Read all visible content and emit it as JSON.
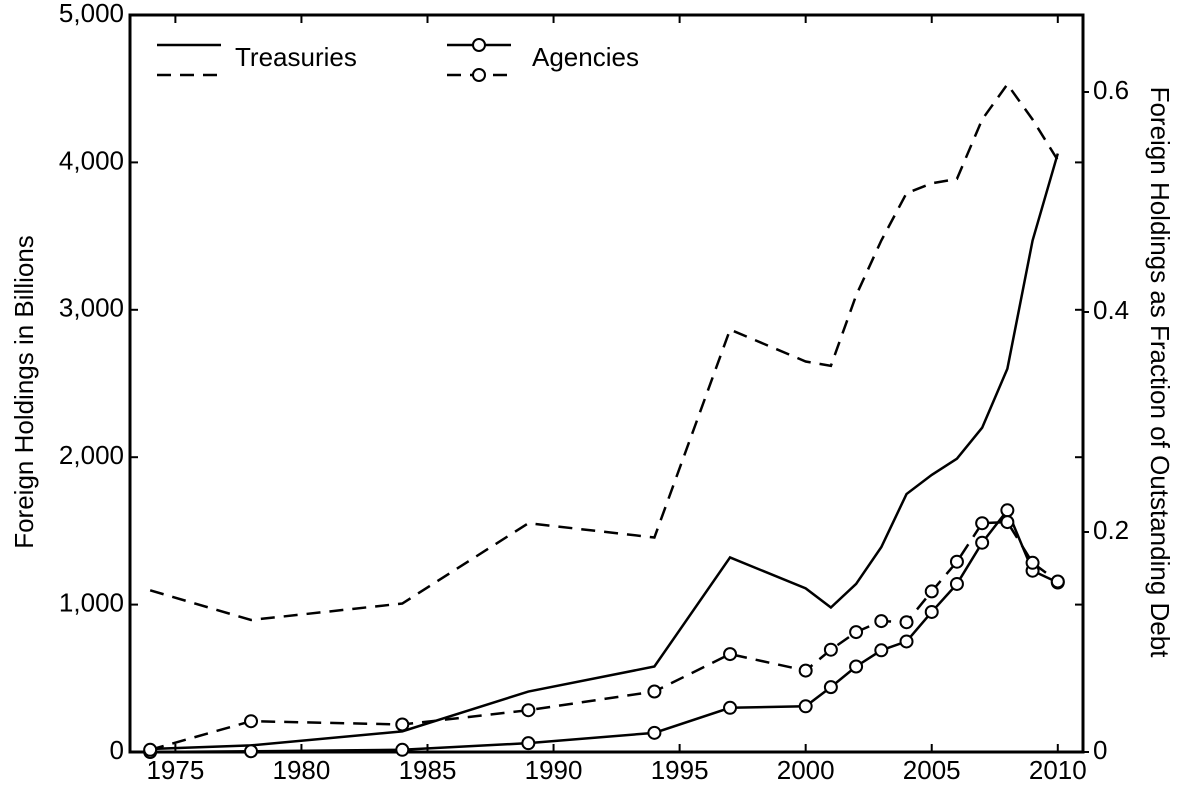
{
  "chart_data": {
    "type": "line",
    "x": [
      1974,
      1978,
      1984,
      1989,
      1994,
      1997,
      2000,
      2001,
      2002,
      2003,
      2004,
      2005,
      2006,
      2007,
      2008,
      2009,
      2010
    ],
    "xlim": [
      1973.2,
      2011
    ],
    "xticks": [
      1975,
      1980,
      1985,
      1990,
      1995,
      2000,
      2005,
      2010
    ],
    "ylim": [
      0,
      5000
    ],
    "yticks": [
      0,
      {
        "value": 1000,
        "label": "1,000"
      },
      {
        "value": 2000,
        "label": "2,000"
      },
      {
        "value": 3000,
        "label": "3,000"
      },
      {
        "value": 4000,
        "label": "4,000"
      },
      {
        "value": 5000,
        "label": "5,000"
      }
    ],
    "y2lim": [
      0,
      0.67
    ],
    "y2ticks": [
      0,
      0.2,
      0.4,
      0.6
    ],
    "ylabel": "Foreign Holdings in Billions",
    "y2label": "Foreign Holdings as Fraction of Outstanding Debt",
    "series": [
      {
        "name": "Treasuries",
        "color": "#000000",
        "dashed": false,
        "markers": false,
        "values": [
          20,
          45,
          140,
          410,
          580,
          1320,
          1110,
          980,
          1140,
          1390,
          1750,
          1880,
          1990,
          2200,
          2600,
          3470,
          4060
        ]
      },
      {
        "color": "#000000",
        "axis": "y2",
        "dashed": true,
        "markers": false,
        "values": [
          0.147,
          0.12,
          0.135,
          0.208,
          0.195,
          0.384,
          0.355,
          0.351,
          0.415,
          0.465,
          0.508,
          0.517,
          0.521,
          0.575,
          0.607,
          0.575,
          0.538
        ]
      },
      {
        "name": "Agencies",
        "color": "#000000",
        "dashed": false,
        "markers": true,
        "values": [
          0,
          5,
          15,
          60,
          130,
          300,
          310,
          440,
          580,
          690,
          750,
          950,
          1140,
          1420,
          1640,
          1230,
          1150
        ]
      },
      {
        "color": "#000000",
        "axis": "y2",
        "dashed": true,
        "markers": true,
        "values": [
          0.002,
          0.028,
          0.025,
          0.038,
          0.055,
          0.089,
          0.074,
          0.093,
          0.109,
          0.119,
          0.118,
          0.146,
          0.173,
          0.208,
          0.209,
          0.172,
          0.155
        ]
      }
    ]
  }
}
